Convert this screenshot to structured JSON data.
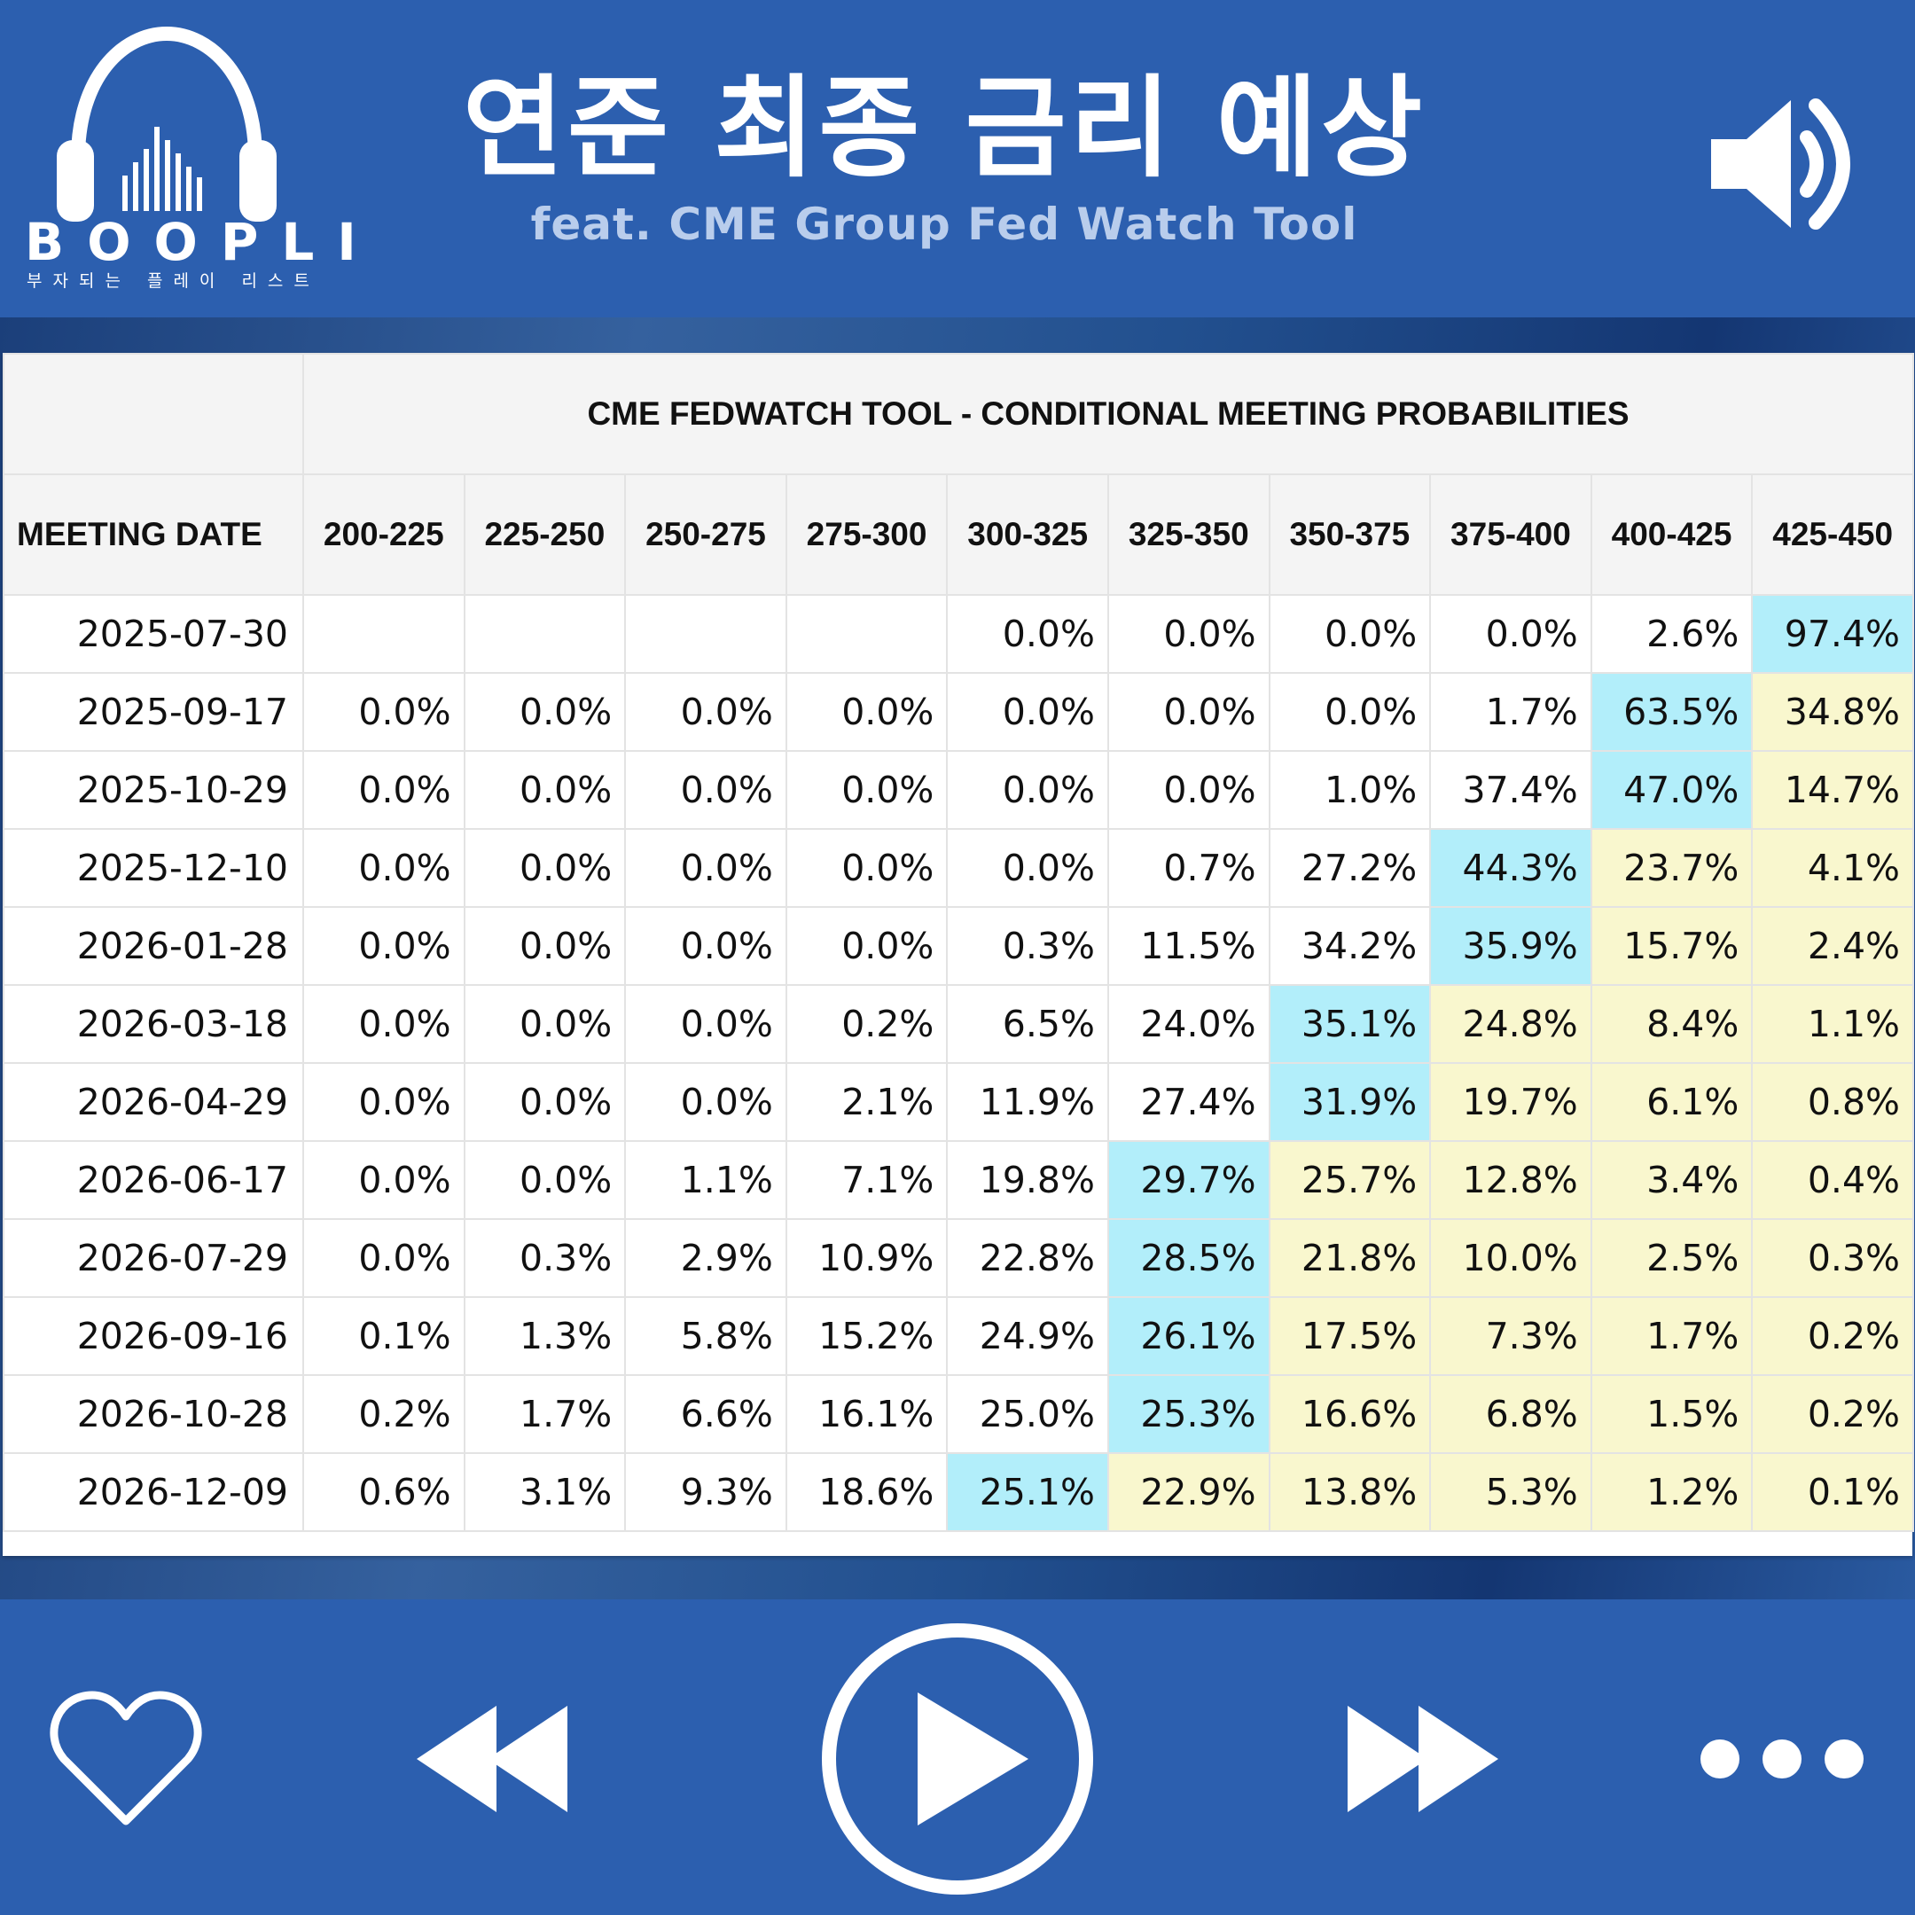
{
  "header": {
    "logo_text": "BOOPLI",
    "logo_tagline": "부자되는 플레이 리스트",
    "title": "연준 최종 금리 예상",
    "subtitle": "feat. CME Group Fed Watch Tool",
    "icons": {
      "logo": "headphones-icon",
      "volume": "speaker-volume-icon"
    }
  },
  "table": {
    "title": "CME FEDWATCH TOOL - CONDITIONAL MEETING PROBABILITIES",
    "date_header": "MEETING DATE",
    "columns": [
      "200-225",
      "225-250",
      "250-275",
      "275-300",
      "300-325",
      "325-350",
      "350-375",
      "375-400",
      "400-425",
      "425-450"
    ],
    "highlight_colors": {
      "max": "#b2eefa",
      "above_max": "#f9f7ce"
    },
    "rows": [
      {
        "date": "2025-07-30",
        "values": [
          "",
          "",
          "",
          "",
          "0.0%",
          "0.0%",
          "0.0%",
          "0.0%",
          "2.6%",
          "97.4%"
        ],
        "max_index": 9
      },
      {
        "date": "2025-09-17",
        "values": [
          "0.0%",
          "0.0%",
          "0.0%",
          "0.0%",
          "0.0%",
          "0.0%",
          "0.0%",
          "1.7%",
          "63.5%",
          "34.8%"
        ],
        "max_index": 8
      },
      {
        "date": "2025-10-29",
        "values": [
          "0.0%",
          "0.0%",
          "0.0%",
          "0.0%",
          "0.0%",
          "0.0%",
          "1.0%",
          "37.4%",
          "47.0%",
          "14.7%"
        ],
        "max_index": 8
      },
      {
        "date": "2025-12-10",
        "values": [
          "0.0%",
          "0.0%",
          "0.0%",
          "0.0%",
          "0.0%",
          "0.7%",
          "27.2%",
          "44.3%",
          "23.7%",
          "4.1%"
        ],
        "max_index": 7
      },
      {
        "date": "2026-01-28",
        "values": [
          "0.0%",
          "0.0%",
          "0.0%",
          "0.0%",
          "0.3%",
          "11.5%",
          "34.2%",
          "35.9%",
          "15.7%",
          "2.4%"
        ],
        "max_index": 7
      },
      {
        "date": "2026-03-18",
        "values": [
          "0.0%",
          "0.0%",
          "0.0%",
          "0.2%",
          "6.5%",
          "24.0%",
          "35.1%",
          "24.8%",
          "8.4%",
          "1.1%"
        ],
        "max_index": 6
      },
      {
        "date": "2026-04-29",
        "values": [
          "0.0%",
          "0.0%",
          "0.0%",
          "2.1%",
          "11.9%",
          "27.4%",
          "31.9%",
          "19.7%",
          "6.1%",
          "0.8%"
        ],
        "max_index": 6
      },
      {
        "date": "2026-06-17",
        "values": [
          "0.0%",
          "0.0%",
          "1.1%",
          "7.1%",
          "19.8%",
          "29.7%",
          "25.7%",
          "12.8%",
          "3.4%",
          "0.4%"
        ],
        "max_index": 5
      },
      {
        "date": "2026-07-29",
        "values": [
          "0.0%",
          "0.3%",
          "2.9%",
          "10.9%",
          "22.8%",
          "28.5%",
          "21.8%",
          "10.0%",
          "2.5%",
          "0.3%"
        ],
        "max_index": 5
      },
      {
        "date": "2026-09-16",
        "values": [
          "0.1%",
          "1.3%",
          "5.8%",
          "15.2%",
          "24.9%",
          "26.1%",
          "17.5%",
          "7.3%",
          "1.7%",
          "0.2%"
        ],
        "max_index": 5
      },
      {
        "date": "2026-10-28",
        "values": [
          "0.2%",
          "1.7%",
          "6.6%",
          "16.1%",
          "25.0%",
          "25.3%",
          "16.6%",
          "6.8%",
          "1.5%",
          "0.2%"
        ],
        "max_index": 5
      },
      {
        "date": "2026-12-09",
        "values": [
          "0.6%",
          "3.1%",
          "9.3%",
          "18.6%",
          "25.1%",
          "22.9%",
          "13.8%",
          "5.3%",
          "1.2%",
          "0.1%"
        ],
        "max_index": 4
      }
    ]
  },
  "controls": {
    "icons": [
      "heart-icon",
      "rewind-icon",
      "play-icon",
      "fast-forward-icon",
      "more-icon"
    ]
  }
}
